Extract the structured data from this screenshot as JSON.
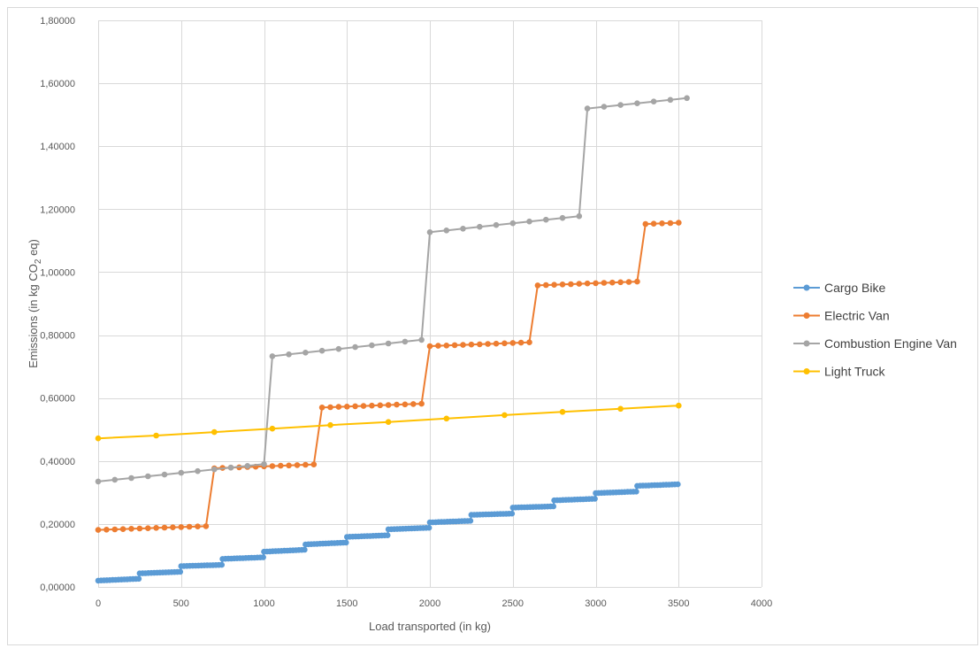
{
  "chart_data": {
    "type": "line",
    "title": "",
    "xlabel": "Load transported  (in kg)",
    "ylabel": {
      "pre": "Emissions (in kg CO",
      "sub": "2",
      "post": " eq)"
    },
    "xlim": [
      0,
      4000
    ],
    "ylim": [
      0,
      1.8
    ],
    "x_ticks": [
      0,
      500,
      1000,
      1500,
      2000,
      2500,
      3000,
      3500,
      4000
    ],
    "x_tick_labels": [
      "0",
      "500",
      "1000",
      "1500",
      "2000",
      "2500",
      "3000",
      "3500",
      "4000"
    ],
    "y_ticks": [
      0,
      0.2,
      0.4,
      0.6,
      0.8,
      1.0,
      1.2,
      1.4,
      1.6,
      1.8
    ],
    "y_tick_labels": [
      "0,00000",
      "0,20000",
      "0,40000",
      "0,60000",
      "0,80000",
      "1,00000",
      "1,20000",
      "1,40000",
      "1,60000",
      "1,80000"
    ],
    "grid": true,
    "legend_position": "right",
    "series": [
      {
        "name": "Cargo Bike",
        "color": "#5b9bd5",
        "segments": [
          {
            "from": 0,
            "to": 250,
            "y_start": 0.02,
            "y_end": 0.026
          },
          {
            "from": 250,
            "to": 500,
            "y_start": 0.043,
            "y_end": 0.048
          },
          {
            "from": 500,
            "to": 750,
            "y_start": 0.066,
            "y_end": 0.07
          },
          {
            "from": 750,
            "to": 1000,
            "y_start": 0.089,
            "y_end": 0.094
          },
          {
            "from": 1000,
            "to": 1250,
            "y_start": 0.112,
            "y_end": 0.118
          },
          {
            "from": 1250,
            "to": 1500,
            "y_start": 0.135,
            "y_end": 0.141
          },
          {
            "from": 1500,
            "to": 1750,
            "y_start": 0.159,
            "y_end": 0.164
          },
          {
            "from": 1750,
            "to": 2000,
            "y_start": 0.183,
            "y_end": 0.188
          },
          {
            "from": 2000,
            "to": 2250,
            "y_start": 0.205,
            "y_end": 0.21
          },
          {
            "from": 2250,
            "to": 2500,
            "y_start": 0.229,
            "y_end": 0.233
          },
          {
            "from": 2500,
            "to": 2750,
            "y_start": 0.252,
            "y_end": 0.256
          },
          {
            "from": 2750,
            "to": 3000,
            "y_start": 0.275,
            "y_end": 0.28
          },
          {
            "from": 3000,
            "to": 3250,
            "y_start": 0.298,
            "y_end": 0.303
          },
          {
            "from": 3250,
            "to": 3500,
            "y_start": 0.321,
            "y_end": 0.326
          }
        ],
        "step": 17.5
      },
      {
        "name": "Electric Van",
        "color": "#ed7d31",
        "segments": [
          {
            "from": 0,
            "to": 650,
            "y_start": 0.181,
            "y_end": 0.193
          },
          {
            "from": 700,
            "to": 1300,
            "y_start": 0.377,
            "y_end": 0.389
          },
          {
            "from": 1350,
            "to": 1950,
            "y_start": 0.57,
            "y_end": 0.582
          },
          {
            "from": 2000,
            "to": 2600,
            "y_start": 0.765,
            "y_end": 0.777
          },
          {
            "from": 2650,
            "to": 3250,
            "y_start": 0.958,
            "y_end": 0.97
          },
          {
            "from": 3300,
            "to": 3500,
            "y_start": 1.153,
            "y_end": 1.157
          }
        ],
        "step": 50
      },
      {
        "name": "Combustion Engine Van",
        "color": "#a5a5a5",
        "segments": [
          {
            "from": 0,
            "to": 950,
            "y_start": 0.335,
            "y_end": 0.39
          },
          {
            "from": 1050,
            "to": 1900,
            "y_start": 0.733,
            "y_end": 0.785
          },
          {
            "from": 2000,
            "to": 2850,
            "y_start": 1.127,
            "y_end": 1.178
          },
          {
            "from": 2950,
            "to": 3500,
            "y_start": 1.52,
            "y_end": 1.553
          }
        ],
        "step": 100
      },
      {
        "name": "Light Truck",
        "color": "#ffc000",
        "points": [
          [
            0,
            0.472
          ],
          [
            350,
            0.481
          ],
          [
            700,
            0.492
          ],
          [
            1050,
            0.503
          ],
          [
            1400,
            0.514
          ],
          [
            1750,
            0.524
          ],
          [
            2100,
            0.535
          ],
          [
            2450,
            0.546
          ],
          [
            2800,
            0.556
          ],
          [
            3150,
            0.566
          ],
          [
            3500,
            0.576
          ]
        ]
      }
    ]
  }
}
